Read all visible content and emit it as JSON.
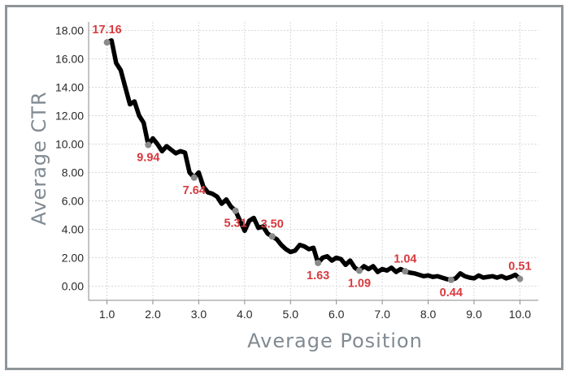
{
  "chart_data": {
    "type": "line",
    "title": "",
    "xlabel": "Average Position",
    "ylabel": "Average CTR",
    "xlim": [
      0.6,
      10.4
    ],
    "ylim": [
      -1.0,
      18.6
    ],
    "grid": true,
    "x_ticks": [
      "1.0",
      "2.0",
      "3.0",
      "4.0",
      "5.0",
      "6.0",
      "7.0",
      "8.0",
      "9.0",
      "10.0"
    ],
    "y_ticks": [
      "0.00",
      "2.00",
      "4.00",
      "6.00",
      "8.00",
      "10.00",
      "12.00",
      "14.00",
      "16.00",
      "18.00"
    ],
    "series": [
      {
        "x": [
          1.0,
          1.1,
          1.2,
          1.3,
          1.4,
          1.5,
          1.6,
          1.7,
          1.8,
          1.9,
          2.0,
          2.1,
          2.2,
          2.3,
          2.4,
          2.5,
          2.6,
          2.7,
          2.8,
          2.9,
          3.0,
          3.1,
          3.2,
          3.3,
          3.4,
          3.5,
          3.6,
          3.7,
          3.8,
          3.9,
          4.0,
          4.1,
          4.2,
          4.3,
          4.4,
          4.5,
          4.6,
          4.7,
          4.8,
          4.9,
          5.0,
          5.1,
          5.2,
          5.3,
          5.4,
          5.5,
          5.6,
          5.7,
          5.8,
          5.9,
          6.0,
          6.1,
          6.2,
          6.3,
          6.4,
          6.5,
          6.6,
          6.7,
          6.8,
          6.9,
          7.0,
          7.1,
          7.2,
          7.3,
          7.4,
          7.5,
          7.6,
          7.7,
          7.8,
          7.9,
          8.0,
          8.1,
          8.2,
          8.3,
          8.4,
          8.5,
          8.6,
          8.7,
          8.8,
          8.9,
          9.0,
          9.1,
          9.2,
          9.3,
          9.4,
          9.5,
          9.6,
          9.7,
          9.8,
          9.9,
          10.0
        ],
        "values": [
          17.16,
          17.3,
          15.7,
          15.2,
          14.0,
          12.8,
          13.0,
          12.0,
          11.5,
          9.94,
          10.4,
          10.0,
          9.5,
          9.85,
          9.6,
          9.35,
          9.5,
          9.4,
          8.0,
          7.64,
          8.0,
          7.0,
          6.6,
          6.5,
          6.3,
          5.8,
          6.1,
          5.6,
          5.31,
          4.6,
          3.9,
          4.6,
          4.8,
          4.1,
          4.2,
          3.7,
          3.5,
          3.3,
          2.9,
          2.6,
          2.4,
          2.5,
          2.9,
          2.8,
          2.6,
          2.7,
          1.63,
          2.0,
          2.1,
          1.8,
          2.0,
          1.9,
          1.5,
          1.8,
          1.3,
          1.09,
          1.4,
          1.2,
          1.4,
          1.0,
          1.2,
          1.1,
          1.3,
          1.0,
          1.2,
          1.04,
          0.95,
          0.9,
          0.8,
          0.7,
          0.75,
          0.65,
          0.7,
          0.6,
          0.5,
          0.44,
          0.55,
          0.9,
          0.7,
          0.6,
          0.55,
          0.75,
          0.6,
          0.65,
          0.7,
          0.6,
          0.7,
          0.55,
          0.65,
          0.8,
          0.51
        ]
      }
    ],
    "data_labels": [
      {
        "x": 1.0,
        "y": 17.16,
        "text": "17.16",
        "pos": "above"
      },
      {
        "x": 1.9,
        "y": 9.94,
        "text": "9.94",
        "pos": "below"
      },
      {
        "x": 2.9,
        "y": 7.64,
        "text": "7.64",
        "pos": "below"
      },
      {
        "x": 3.8,
        "y": 5.31,
        "text": "5.31",
        "pos": "below"
      },
      {
        "x": 4.6,
        "y": 3.5,
        "text": "3.50",
        "pos": "above"
      },
      {
        "x": 5.6,
        "y": 1.63,
        "text": "1.63",
        "pos": "below"
      },
      {
        "x": 6.5,
        "y": 1.09,
        "text": "1.09",
        "pos": "below"
      },
      {
        "x": 7.5,
        "y": 1.04,
        "text": "1.04",
        "pos": "above"
      },
      {
        "x": 8.5,
        "y": 0.44,
        "text": "0.44",
        "pos": "below"
      },
      {
        "x": 10.0,
        "y": 0.51,
        "text": "0.51",
        "pos": "above"
      }
    ],
    "colors": {
      "line": "#000000",
      "marker": "#8a8a8a",
      "label": "#d83a3f",
      "grid": "#d8d8d8",
      "axis_title": "#808a92",
      "frame": "#8f9699"
    }
  }
}
